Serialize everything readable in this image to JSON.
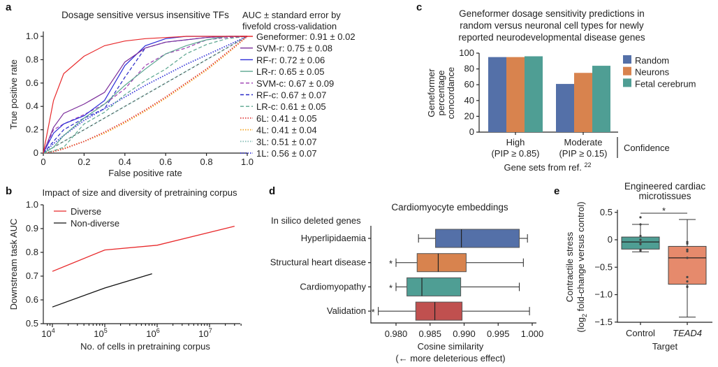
{
  "panels": {
    "a": {
      "label": "a"
    },
    "b": {
      "label": "b"
    },
    "c": {
      "label": "c"
    },
    "d": {
      "label": "d"
    },
    "e": {
      "label": "e"
    }
  },
  "chart_data": [
    {
      "panel": "a",
      "type": "line",
      "title": "Dosage sensitive versus insensitive TFs",
      "xlabel": "False positive rate",
      "ylabel": "True positive rate",
      "xlim": [
        0,
        1
      ],
      "ylim": [
        0,
        1
      ],
      "xticks": [
        "0",
        "0.2",
        "0.4",
        "0.6",
        "0.8",
        "1.0"
      ],
      "yticks": [
        "0",
        "0.2",
        "0.4",
        "0.6",
        "0.8",
        "1.0"
      ],
      "legend_title": [
        "AUC ± standard error by",
        "fivefold cross-validation"
      ],
      "legend_position": "right-outside",
      "x": [
        0,
        0.05,
        0.1,
        0.2,
        0.3,
        0.4,
        0.5,
        0.6,
        0.7,
        0.8,
        0.9,
        1.0
      ],
      "reference_diagonal": true,
      "series": [
        {
          "name": "Geneformer",
          "auc": "0.91 ± 0.02",
          "color": "#e8292b",
          "style": "solid",
          "y": [
            0,
            0.45,
            0.68,
            0.83,
            0.92,
            0.96,
            0.98,
            0.99,
            1,
            1,
            1,
            1
          ]
        },
        {
          "name": "SVM-r",
          "auc": "0.75 ± 0.08",
          "color": "#7b2d9a",
          "style": "solid",
          "y": [
            0,
            0.22,
            0.34,
            0.42,
            0.52,
            0.78,
            0.9,
            0.95,
            0.97,
            0.99,
            1,
            1
          ]
        },
        {
          "name": "RF-r",
          "auc": "0.72 ± 0.06",
          "color": "#2b2bd8",
          "style": "solid",
          "y": [
            0,
            0.17,
            0.25,
            0.32,
            0.45,
            0.75,
            0.92,
            0.98,
            1,
            1,
            1,
            1
          ]
        },
        {
          "name": "LR-r",
          "auc": "0.65 ± 0.05",
          "color": "#5aa58f",
          "style": "solid",
          "y": [
            0,
            0.05,
            0.15,
            0.3,
            0.42,
            0.58,
            0.72,
            0.85,
            0.92,
            0.97,
            1,
            1
          ]
        },
        {
          "name": "SVM-c",
          "auc": "0.67 ± 0.09",
          "color": "#9b3bb0",
          "style": "dashed",
          "y": [
            0,
            0.2,
            0.25,
            0.33,
            0.42,
            0.55,
            0.75,
            0.85,
            0.9,
            0.97,
            0.99,
            1
          ]
        },
        {
          "name": "RF-c",
          "auc": "0.67 ± 0.07",
          "color": "#2828c8",
          "style": "dashed",
          "y": [
            0,
            0.1,
            0.2,
            0.3,
            0.38,
            0.65,
            0.9,
            0.95,
            0.97,
            0.99,
            1,
            1
          ]
        },
        {
          "name": "LR-c",
          "auc": "0.61 ± 0.05",
          "color": "#5aa58f",
          "style": "dashed",
          "y": [
            0,
            0.02,
            0.05,
            0.25,
            0.35,
            0.5,
            0.62,
            0.72,
            0.85,
            0.93,
            0.98,
            1
          ]
        },
        {
          "name": "6L",
          "auc": "0.41 ± 0.05",
          "color": "#e04040",
          "style": "dotted",
          "y": [
            0,
            0.013,
            0.036,
            0.1,
            0.18,
            0.27,
            0.37,
            0.48,
            0.6,
            0.72,
            0.86,
            1
          ]
        },
        {
          "name": "4L",
          "auc": "0.41 ± 0.04",
          "color": "#f5a623",
          "style": "dotted",
          "y": [
            0,
            0.015,
            0.04,
            0.1,
            0.17,
            0.26,
            0.36,
            0.47,
            0.59,
            0.71,
            0.85,
            1
          ]
        },
        {
          "name": "3L",
          "auc": "0.51 ± 0.07",
          "color": "#8abfb8",
          "style": "dotted",
          "y": [
            0,
            0.05,
            0.1,
            0.2,
            0.3,
            0.4,
            0.5,
            0.6,
            0.7,
            0.8,
            0.9,
            1
          ]
        },
        {
          "name": "1L",
          "auc": "0.56 ± 0.07",
          "color": "#3a3ad8",
          "style": "dotted",
          "y": [
            0,
            0.08,
            0.15,
            0.28,
            0.38,
            0.48,
            0.58,
            0.67,
            0.76,
            0.84,
            0.92,
            1
          ]
        }
      ]
    },
    {
      "panel": "b",
      "type": "line",
      "title": "Impact of size and diversity of pretraining corpus",
      "xlabel": "No. of cells in pretraining corpus",
      "ylabel": "Downstream task AUC",
      "xscale": "log",
      "xlim": [
        8000,
        40000000
      ],
      "ylim": [
        0.5,
        1.0
      ],
      "xticks": [
        {
          "base": "10",
          "exp": "4"
        },
        {
          "base": "10",
          "exp": "5"
        },
        {
          "base": "10",
          "exp": "6"
        },
        {
          "base": "10",
          "exp": "7"
        }
      ],
      "yticks": [
        "0.5",
        "0.6",
        "0.7",
        "0.8",
        "0.9",
        "1.0"
      ],
      "legend_position": "top-left",
      "series": [
        {
          "name": "Diverse",
          "color": "#e8292b",
          "x": [
            10000,
            100000,
            1000000,
            30000000
          ],
          "y": [
            0.72,
            0.81,
            0.83,
            0.91
          ]
        },
        {
          "name": "Non-diverse",
          "color": "#111111",
          "x": [
            10000,
            100000,
            800000
          ],
          "y": [
            0.57,
            0.65,
            0.71
          ]
        }
      ]
    },
    {
      "panel": "c",
      "type": "bar",
      "title": [
        "Geneformer dosage sensitivity predictions in",
        "random versus neuronal cell types for newly",
        "reported neurodevelopmental disease genes"
      ],
      "ylabel": [
        "Geneformer",
        "percentage",
        "concordance"
      ],
      "xlabel": "Gene sets from ref.",
      "xlabel_ref": "22",
      "group_axis_label": "Confidence",
      "ylim": [
        0,
        100
      ],
      "yticks": [
        "0",
        "20",
        "40",
        "60",
        "80",
        "100"
      ],
      "categories": [
        {
          "name": "High",
          "sub": "(PIP ≥ 0.85)"
        },
        {
          "name": "Moderate",
          "sub": "(PIP ≥ 0.15)"
        }
      ],
      "legend_position": "right",
      "series": [
        {
          "name": "Random",
          "color": "#5470a8",
          "values": [
            95,
            61
          ]
        },
        {
          "name": "Neurons",
          "color": "#d8834e",
          "values": [
            95,
            75
          ]
        },
        {
          "name": "Fetal cerebrum",
          "color": "#4f9e94",
          "values": [
            96,
            84
          ]
        }
      ]
    },
    {
      "panel": "d",
      "type": "box",
      "title": "Cardiomyocyte embeddings",
      "ylabel": "In silico deleted genes",
      "xlabel": [
        "Cosine similarity",
        "(← more deleterious effect)"
      ],
      "xlim": [
        0.9765,
        1.0005
      ],
      "xticks": [
        "0.980",
        "0.985",
        "0.990",
        "0.995",
        "1.000"
      ],
      "significance_marker": "*",
      "boxes": [
        {
          "name": "Hyperlipidaemia",
          "color": "#5470a8",
          "whisker_low": 0.9833,
          "q1": 0.9858,
          "median": 0.9896,
          "q3": 0.9981,
          "whisker_high": 0.9993,
          "significant": false
        },
        {
          "name": "Structural heart disease",
          "color": "#d8834e",
          "whisker_low": 0.98,
          "q1": 0.9831,
          "median": 0.9862,
          "q3": 0.9903,
          "whisker_high": 0.9987,
          "significant": true
        },
        {
          "name": "Cardiomyopathy",
          "color": "#4f9e94",
          "whisker_low": 0.98,
          "q1": 0.9816,
          "median": 0.9838,
          "q3": 0.9895,
          "whisker_high": 0.9981,
          "significant": true
        },
        {
          "name": "Validation",
          "color": "#c0504f",
          "whisker_low": 0.9774,
          "q1": 0.9829,
          "median": 0.9857,
          "q3": 0.9897,
          "whisker_high": 0.9996,
          "significant": true
        }
      ]
    },
    {
      "panel": "e",
      "type": "box",
      "title": [
        "Engineered cardiac",
        "microtissues"
      ],
      "ylabel": [
        "Contractile stress",
        "(log",
        "2",
        " fold-change versus control)"
      ],
      "xlabel": "Target",
      "ylim": [
        -1.5,
        0.55
      ],
      "yticks": [
        "0.5",
        "0",
        "−0.5",
        "−1.0",
        "−1.5"
      ],
      "significance_marker": "*",
      "boxes": [
        {
          "name": "Control",
          "italic": false,
          "color": "#4f9e94",
          "whisker_low": -0.22,
          "q1": -0.17,
          "median": -0.04,
          "q3": 0.05,
          "whisker_high": 0.28,
          "points": [
            0.41,
            0.28,
            0.07,
            0.0,
            -0.05,
            -0.08,
            -0.18,
            -0.2
          ]
        },
        {
          "name": "TEAD4",
          "italic": true,
          "color": "#e68a6c",
          "whisker_low": -1.41,
          "q1": -0.81,
          "median": -0.33,
          "q3": -0.12,
          "whisker_high": 0.37,
          "points": [
            -0.04,
            -0.07,
            -0.18,
            -0.21,
            -0.33,
            -0.68,
            -0.76,
            -0.85,
            -0.86
          ]
        }
      ]
    }
  ]
}
